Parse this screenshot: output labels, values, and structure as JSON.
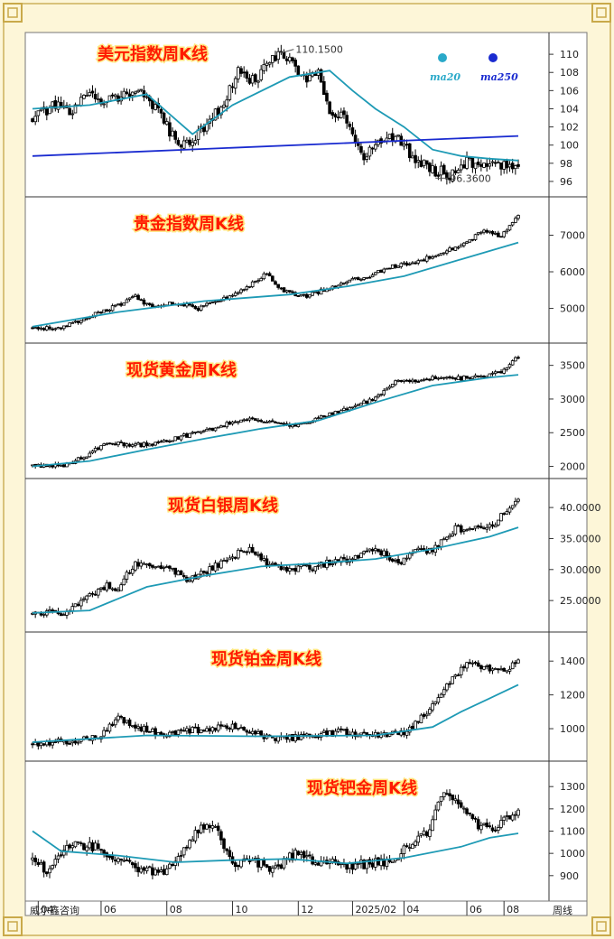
{
  "footer": {
    "source": "威尔鑫咨询",
    "period": "周线"
  },
  "colors": {
    "bull": "#ffffff",
    "bear": "#000000",
    "ma": "#1e9ab5",
    "trend": "#1a2bd0",
    "ma20": "#2aa9c9",
    "ma250": "#1a2bd0"
  },
  "x_ticks": [
    "04",
    "06",
    "08",
    "10",
    "12",
    "2025/02",
    "04",
    "06",
    "08"
  ],
  "chart_data": [
    {
      "type": "candlestick",
      "title": "美元指数周K线",
      "yticks": [
        96,
        98,
        100,
        102,
        104,
        106,
        108,
        110
      ],
      "ylim": [
        94.9,
        111.8
      ],
      "anchors": [
        [
          0,
          103
        ],
        [
          8,
          104.3
        ],
        [
          14,
          103.5
        ],
        [
          20,
          106
        ],
        [
          24,
          105
        ],
        [
          30,
          105.3
        ],
        [
          38,
          106
        ],
        [
          44,
          103.5
        ],
        [
          50,
          100.5
        ],
        [
          56,
          100.1
        ],
        [
          62,
          103
        ],
        [
          66,
          104
        ],
        [
          72,
          108
        ],
        [
          78,
          107
        ],
        [
          84,
          109.5
        ],
        [
          88,
          110.2
        ],
        [
          94,
          107.3
        ],
        [
          100,
          107.7
        ],
        [
          104,
          104
        ],
        [
          110,
          103
        ],
        [
          116,
          98.5
        ],
        [
          122,
          100.5
        ],
        [
          128,
          100.8
        ],
        [
          134,
          98.4
        ],
        [
          140,
          97.3
        ],
        [
          146,
          96.8
        ],
        [
          152,
          98.2
        ],
        [
          158,
          97.6
        ],
        [
          164,
          97.8
        ],
        [
          170,
          97.7
        ]
      ],
      "ma": [
        [
          0,
          104
        ],
        [
          20,
          104.4
        ],
        [
          40,
          105.6
        ],
        [
          56,
          101.2
        ],
        [
          70,
          104.4
        ],
        [
          90,
          107.5
        ],
        [
          104,
          108.2
        ],
        [
          112,
          106
        ],
        [
          120,
          104
        ],
        [
          130,
          102
        ],
        [
          140,
          99.5
        ],
        [
          150,
          98.8
        ],
        [
          160,
          98.5
        ],
        [
          170,
          98.3
        ]
      ],
      "trend": [
        [
          0,
          98.8
        ],
        [
          170,
          101
        ]
      ],
      "volatility": 0.8,
      "annotations": [
        {
          "i": 87,
          "price": 110.15,
          "label": "110.1500",
          "side": "high"
        },
        {
          "i": 141,
          "price": 96.36,
          "label": "96.3600",
          "side": "low"
        }
      ],
      "legend": [
        "ma20",
        "ma250"
      ]
    },
    {
      "type": "candlestick",
      "title": "贵金指数周K线",
      "yticks": [
        5000,
        6000,
        7000
      ],
      "ylim": [
        4200,
        7900
      ],
      "anchors": [
        [
          0,
          4480
        ],
        [
          10,
          4440
        ],
        [
          20,
          4800
        ],
        [
          30,
          5080
        ],
        [
          36,
          5330
        ],
        [
          42,
          5000
        ],
        [
          50,
          5160
        ],
        [
          58,
          5000
        ],
        [
          66,
          5220
        ],
        [
          76,
          5620
        ],
        [
          82,
          5960
        ],
        [
          88,
          5450
        ],
        [
          96,
          5350
        ],
        [
          104,
          5560
        ],
        [
          112,
          5800
        ],
        [
          118,
          5900
        ],
        [
          126,
          6150
        ],
        [
          134,
          6250
        ],
        [
          140,
          6450
        ],
        [
          146,
          6620
        ],
        [
          152,
          6800
        ],
        [
          158,
          7150
        ],
        [
          164,
          6950
        ],
        [
          170,
          7550
        ]
      ],
      "ma": [
        [
          0,
          4500
        ],
        [
          30,
          4900
        ],
        [
          60,
          5200
        ],
        [
          90,
          5380
        ],
        [
          110,
          5600
        ],
        [
          130,
          5880
        ],
        [
          150,
          6340
        ],
        [
          170,
          6800
        ]
      ],
      "volatility": 70
    },
    {
      "type": "candlestick",
      "title": "现货黄金周K线",
      "yticks": [
        2000,
        2500,
        3000,
        3500
      ],
      "ylim": [
        1900,
        3750
      ],
      "anchors": [
        [
          0,
          2010
        ],
        [
          12,
          2020
        ],
        [
          20,
          2180
        ],
        [
          26,
          2360
        ],
        [
          34,
          2310
        ],
        [
          42,
          2330
        ],
        [
          50,
          2420
        ],
        [
          60,
          2520
        ],
        [
          70,
          2650
        ],
        [
          78,
          2710
        ],
        [
          88,
          2600
        ],
        [
          96,
          2650
        ],
        [
          104,
          2770
        ],
        [
          112,
          2890
        ],
        [
          120,
          3000
        ],
        [
          128,
          3280
        ],
        [
          134,
          3250
        ],
        [
          142,
          3340
        ],
        [
          150,
          3310
        ],
        [
          160,
          3350
        ],
        [
          166,
          3450
        ],
        [
          170,
          3630
        ]
      ],
      "ma": [
        [
          0,
          2000
        ],
        [
          20,
          2080
        ],
        [
          40,
          2250
        ],
        [
          60,
          2410
        ],
        [
          80,
          2560
        ],
        [
          100,
          2680
        ],
        [
          120,
          2950
        ],
        [
          140,
          3200
        ],
        [
          160,
          3320
        ],
        [
          170,
          3360
        ]
      ],
      "volatility": 40
    },
    {
      "type": "candlestick",
      "title": "现货白银周K线",
      "yticks": [
        25,
        30,
        35,
        40
      ],
      "ytick_labels": [
        "25.0000",
        "30.0000",
        "35.0000",
        "40.0000"
      ],
      "ylim": [
        20.8,
        43.8
      ],
      "anchors": [
        [
          0,
          22.9
        ],
        [
          10,
          23
        ],
        [
          18,
          25
        ],
        [
          26,
          27.6
        ],
        [
          30,
          27
        ],
        [
          36,
          31.3
        ],
        [
          42,
          29.9
        ],
        [
          48,
          30.2
        ],
        [
          54,
          28.2
        ],
        [
          60,
          29.6
        ],
        [
          68,
          31.7
        ],
        [
          76,
          33.6
        ],
        [
          82,
          31
        ],
        [
          90,
          30.1
        ],
        [
          98,
          30.4
        ],
        [
          106,
          31.4
        ],
        [
          112,
          31.6
        ],
        [
          120,
          33.5
        ],
        [
          128,
          31.1
        ],
        [
          134,
          32.8
        ],
        [
          140,
          33.3
        ],
        [
          148,
          36.6
        ],
        [
          154,
          36.3
        ],
        [
          162,
          37.6
        ],
        [
          170,
          41.5
        ]
      ],
      "ma": [
        [
          0,
          23
        ],
        [
          20,
          23.4
        ],
        [
          40,
          27.2
        ],
        [
          60,
          29
        ],
        [
          80,
          30.5
        ],
        [
          100,
          31
        ],
        [
          120,
          31.7
        ],
        [
          140,
          33.3
        ],
        [
          160,
          35.3
        ],
        [
          170,
          36.8
        ]
      ],
      "volatility": 0.7
    },
    {
      "type": "candlestick",
      "title": "现货铂金周K线",
      "yticks": [
        1000,
        1200,
        1400
      ],
      "ylim": [
        840,
        1540
      ],
      "anchors": [
        [
          0,
          910
        ],
        [
          14,
          925
        ],
        [
          24,
          960
        ],
        [
          30,
          1060
        ],
        [
          36,
          1020
        ],
        [
          44,
          965
        ],
        [
          52,
          985
        ],
        [
          62,
          1000
        ],
        [
          72,
          1020
        ],
        [
          80,
          960
        ],
        [
          88,
          940
        ],
        [
          98,
          960
        ],
        [
          108,
          980
        ],
        [
          116,
          960
        ],
        [
          124,
          960
        ],
        [
          132,
          990
        ],
        [
          140,
          1130
        ],
        [
          146,
          1270
        ],
        [
          152,
          1380
        ],
        [
          158,
          1360
        ],
        [
          164,
          1350
        ],
        [
          170,
          1390
        ]
      ],
      "ma": [
        [
          0,
          920
        ],
        [
          40,
          960
        ],
        [
          80,
          955
        ],
        [
          120,
          960
        ],
        [
          140,
          1010
        ],
        [
          150,
          1100
        ],
        [
          160,
          1180
        ],
        [
          170,
          1260
        ]
      ],
      "volatility": 25
    },
    {
      "type": "candlestick",
      "title": "现货钯金周K线",
      "yticks": [
        900,
        1000,
        1100,
        1200,
        1300
      ],
      "ylim": [
        810,
        1390
      ],
      "anchors": [
        [
          0,
          970
        ],
        [
          6,
          920
        ],
        [
          12,
          1030
        ],
        [
          20,
          1040
        ],
        [
          26,
          1000
        ],
        [
          32,
          950
        ],
        [
          38,
          935
        ],
        [
          46,
          905
        ],
        [
          52,
          1000
        ],
        [
          58,
          1100
        ],
        [
          64,
          1130
        ],
        [
          70,
          950
        ],
        [
          76,
          980
        ],
        [
          84,
          920
        ],
        [
          92,
          1000
        ],
        [
          100,
          960
        ],
        [
          108,
          950
        ],
        [
          116,
          950
        ],
        [
          124,
          960
        ],
        [
          132,
          1030
        ],
        [
          138,
          1090
        ],
        [
          144,
          1270
        ],
        [
          150,
          1210
        ],
        [
          156,
          1130
        ],
        [
          162,
          1110
        ],
        [
          170,
          1200
        ]
      ],
      "ma": [
        [
          0,
          1100
        ],
        [
          10,
          1010
        ],
        [
          30,
          990
        ],
        [
          50,
          960
        ],
        [
          70,
          970
        ],
        [
          90,
          975
        ],
        [
          110,
          955
        ],
        [
          130,
          980
        ],
        [
          150,
          1030
        ],
        [
          160,
          1070
        ],
        [
          170,
          1090
        ]
      ],
      "volatility": 28
    }
  ]
}
